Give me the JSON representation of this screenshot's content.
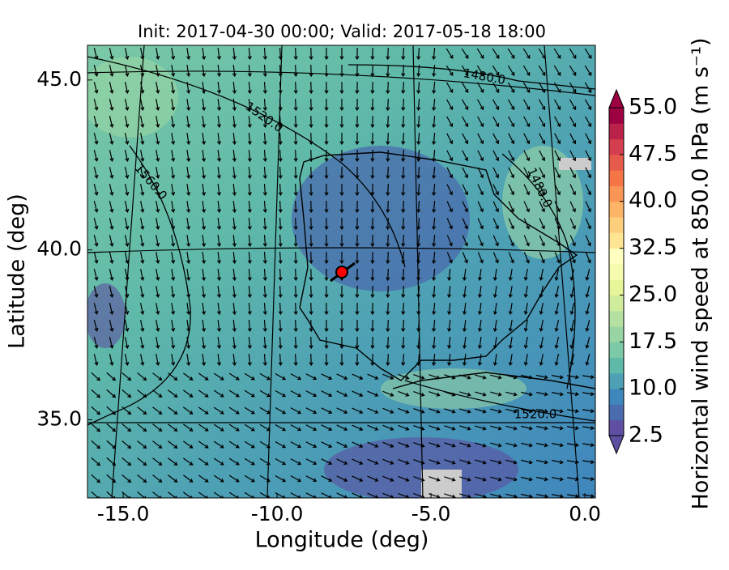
{
  "title": "Init: 2017-04-30 00:00; Valid: 2017-05-18 18:00",
  "x_axis": {
    "label": "Longitude (deg)",
    "lim": [
      -16.16,
      0.34
    ],
    "ticks": [
      {
        "value": -15,
        "label": "-15.0"
      },
      {
        "value": -10,
        "label": "-10.0"
      },
      {
        "value": -5,
        "label": "-5.0"
      },
      {
        "value": 0,
        "label": "0.0"
      }
    ]
  },
  "y_axis": {
    "label": "Latitude (deg)",
    "lim": [
      32.7,
      46.02
    ],
    "ticks": [
      {
        "value": 35,
        "label": "35.0"
      },
      {
        "value": 40,
        "label": "40.0"
      },
      {
        "value": 45,
        "label": "45.0"
      }
    ]
  },
  "colorbar": {
    "label": "Horizontal wind speed at 850.0 hPa (m s⁻¹)",
    "lim": [
      2.5,
      55
    ],
    "ticks": [
      2.5,
      {
        "value": 10,
        "label": "10.0"
      },
      17.5,
      {
        "value": 25,
        "label": "25.0"
      },
      32.5,
      {
        "value": 40,
        "label": "40.0"
      },
      47.5,
      {
        "value": 55,
        "label": "55.0"
      }
    ],
    "colors": [
      "#5e4fa2",
      "#4a6bae",
      "#3f86bc",
      "#4ea1b4",
      "#5fb9a9",
      "#7bc9a6",
      "#99d5a4",
      "#b4e0a2",
      "#cfec9d",
      "#e6f598",
      "#f7fbb0",
      "#ffffbf",
      "#fee593",
      "#fdcf7c",
      "#fdb466",
      "#f99555",
      "#f57547",
      "#e55a4a",
      "#d53e4f",
      "#bb2249",
      "#9e0142"
    ]
  },
  "contour_labels": [
    "1480.0",
    "1520.0",
    "1560.0",
    "1480.0",
    "1520.0"
  ]
}
